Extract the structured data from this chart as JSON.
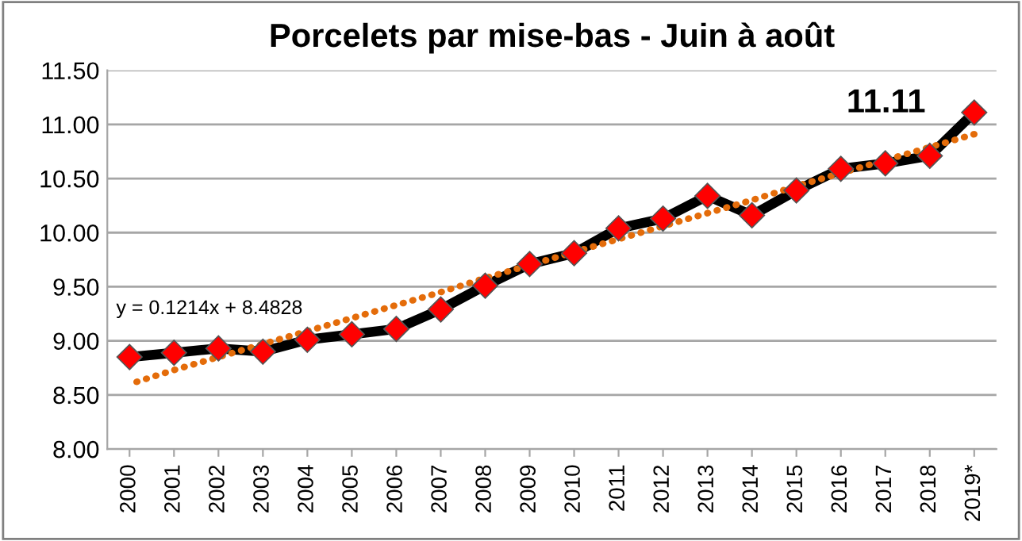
{
  "chart_data": {
    "type": "line",
    "title": "Porcelets par mise-bas - Juin à août",
    "categories": [
      "2000",
      "2001",
      "2002",
      "2003",
      "2004",
      "2005",
      "2006",
      "2007",
      "2008",
      "2009",
      "2010",
      "2011",
      "2012",
      "2013",
      "2014",
      "2015",
      "2016",
      "2017",
      "2018",
      "2019*"
    ],
    "series": [
      {
        "color": "#000000",
        "marker": "diamond",
        "line_style": "solid",
        "colors": [
          "#ff0000",
          "#ff0000",
          "#ff0000",
          "#ff0000",
          "#ff0000",
          "#ff0000",
          "#ff0000",
          "#ff0000",
          "#ff0000",
          "#ff0000",
          "#ff0000",
          "#ff0000",
          "#ff0000",
          "#ff0000",
          "#ff0000",
          "#ff0000",
          "#ff0000",
          "#ff0000",
          "#ff0000",
          "#ff0000"
        ],
        "values": [
          8.85,
          8.89,
          8.93,
          8.9,
          9.01,
          9.06,
          9.11,
          9.29,
          9.51,
          9.71,
          9.81,
          10.04,
          10.13,
          10.34,
          10.16,
          10.39,
          10.59,
          10.64,
          10.71,
          11.11
        ]
      },
      {
        "color": "#e46c0a",
        "marker": "none",
        "line_style": "dotted",
        "values": [
          8.6,
          8.73,
          8.85,
          8.97,
          9.09,
          9.21,
          9.33,
          9.45,
          9.58,
          9.7,
          9.82,
          9.94,
          10.06,
          10.18,
          10.3,
          10.43,
          10.55,
          10.67,
          10.79,
          10.91
        ]
      }
    ],
    "ylim": [
      8.0,
      11.5
    ],
    "yticks": [
      {
        "value": 8.0,
        "label": "8.00"
      },
      {
        "value": 8.5,
        "label": "8.50"
      },
      {
        "value": 9.0,
        "label": "9.00"
      },
      {
        "value": 9.5,
        "label": "9.50"
      },
      {
        "value": 10.0,
        "label": "10.00"
      },
      {
        "value": 10.5,
        "label": "10.50"
      },
      {
        "value": 11.0,
        "label": "11.00"
      },
      {
        "value": 11.5,
        "label": "11.50"
      }
    ],
    "grid": "y",
    "annotations": [
      "y = 0.1214x + 8.4828",
      {
        "text": "11.11",
        "x": "2019*",
        "y": 11.11
      }
    ]
  }
}
